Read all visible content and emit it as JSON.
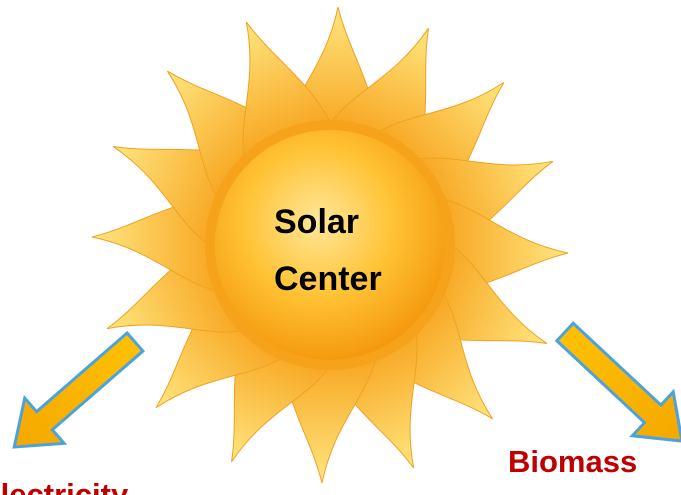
{
  "sun": {
    "label_line1": "Solar",
    "label_line2": "Center"
  },
  "outputs": [
    {
      "label": "Electricity"
    },
    {
      "label": "Biomass"
    }
  ]
}
